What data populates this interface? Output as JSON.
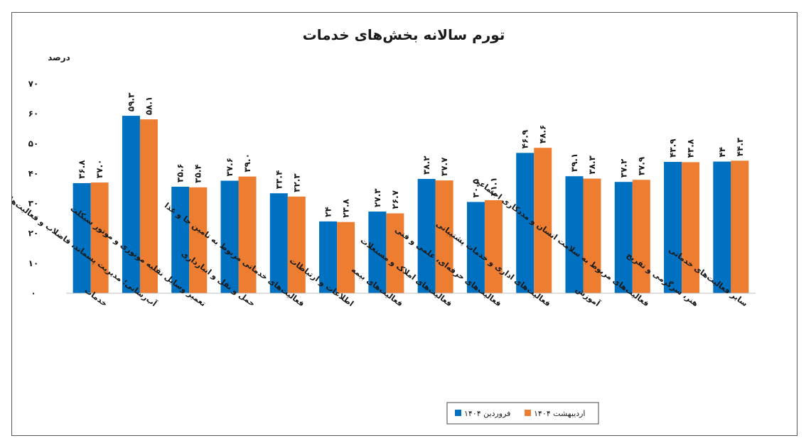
{
  "chart_data": {
    "type": "bar",
    "title": "تورم سالانه بخش‌های خدمات",
    "ylabel": "درصد",
    "ylim": [
      0,
      70
    ],
    "yticks": [
      0,
      10,
      20,
      30,
      40,
      50,
      60,
      70
    ],
    "ytick_labels": [
      "۰",
      "۱۰",
      "۲۰",
      "۳۰",
      "۴۰",
      "۵۰",
      "۶۰",
      "۷۰"
    ],
    "grid": false,
    "legend_position": "bottom",
    "categories": [
      "خدمات",
      "آب‌رسانی؛ مدیریت پسماند، فاضلاب و فعالیت‌های تصفیه",
      "تعمیر وسایل نقلیه موتوری و موتور سیکلت",
      "حمل و نقل و انبارداری",
      "فعالیت‌های خدماتی مربوط به تامین جا و غذا",
      "اطلاعات و ارتباطات",
      "فعالیت‌های بیمه",
      "فعالیت‌های املاک و مستغلات",
      "فعالیت‌های حرفه‌ای، علمی و فنی",
      "فعالیت‌های اداری و خدمات پشتیبانی",
      "آموزش",
      "فعالیت‌های مربوط به سلامت انسان و مددکاری اجتماعی",
      "هنر، سرگرمی و تفریح",
      "سایر فعالیت‌های خدماتی"
    ],
    "series": [
      {
        "name": "فروردین ۱۴۰۴",
        "color": "#0070C0",
        "values": [
          36.8,
          59.3,
          35.6,
          37.6,
          33.4,
          24,
          27.3,
          38.2,
          30.5,
          46.9,
          39.1,
          37.2,
          43.9,
          44
        ],
        "labels": [
          "۳۶.۸",
          "۵۹.۳",
          "۳۵.۶",
          "۳۷.۶",
          "۳۳.۴",
          "۲۴",
          "۲۷.۳",
          "۳۸.۲",
          "۳۰.۵",
          "۴۶.۹",
          "۳۹.۱",
          "۳۷.۲",
          "۴۳.۹",
          "۴۴"
        ]
      },
      {
        "name": "اردیبهشت ۱۴۰۴",
        "color": "#ED7D31",
        "values": [
          37.0,
          58.1,
          35.4,
          39.0,
          32.3,
          23.8,
          26.7,
          37.7,
          31.1,
          48.6,
          38.3,
          37.9,
          43.8,
          44.3
        ],
        "labels": [
          "۳۷.۰",
          "۵۸.۱",
          "۳۵.۴",
          "۳۹.۰",
          "۳۲.۳",
          "۲۳.۸",
          "۲۶.۷",
          "۳۷.۷",
          "۳۱.۱",
          "۴۸.۶",
          "۳۸.۳",
          "۳۷.۹",
          "۴۳.۸",
          "۴۴.۳"
        ]
      }
    ]
  }
}
